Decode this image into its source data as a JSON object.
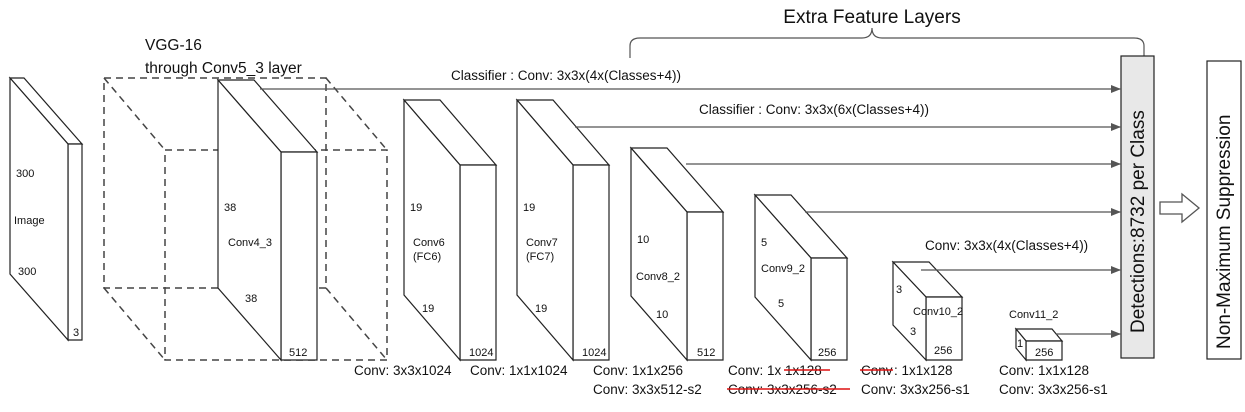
{
  "header": {
    "extra_feature_layers": "Extra Feature Layers",
    "vgg_title_line1": "VGG-16",
    "vgg_title_line2": "through Conv5_3 layer"
  },
  "input": {
    "label": "Image",
    "height_label": "300",
    "width_label": "300",
    "depth_label": "3"
  },
  "layers": {
    "conv4_3": {
      "name": "Conv4_3",
      "h": "38",
      "w": "38",
      "d": "512"
    },
    "conv6": {
      "name": "Conv6",
      "sub": "(FC6)",
      "h": "19",
      "w": "19",
      "d": "1024"
    },
    "conv7": {
      "name": "Conv7",
      "sub": "(FC7)",
      "h": "19",
      "w": "19",
      "d": "1024"
    },
    "conv8_2": {
      "name": "Conv8_2",
      "h": "10",
      "w": "10",
      "d": "512"
    },
    "conv9_2": {
      "name": "Conv9_2",
      "h": "5",
      "w": "5",
      "d": "256"
    },
    "conv10_2": {
      "name": "Conv10_2",
      "h": "3",
      "w": "3",
      "d": "256"
    },
    "conv11_2": {
      "name": "Conv11_2",
      "h": "1",
      "d": "256"
    }
  },
  "classifiers": {
    "c1": "Classifier : Conv: 3x3x(4x(Classes+4))",
    "c2": "Classifier : Conv: 3x3x(6x(Classes+4))",
    "c3": "Conv: 3x3x(4x(Classes+4))"
  },
  "bottom_labels": {
    "conv6_op": "Conv: 3x3x1024",
    "conv7_op": "Conv: 1x1x1024",
    "conv8_op1": "Conv: 1x1x256",
    "conv8_op2": "Conv:  3x3x512-s2",
    "conv9_op1_prefix": "Conv: 1x",
    "conv9_op1_struck": "1x128",
    "conv9_op2_struck": "Conv: 3x3x256-s2",
    "conv10_op1_struck": "Conv",
    "conv10_op1_rest": ": 1x1x128",
    "conv10_op2": "Conv: 3x3x256-s1",
    "conv11_op1": "Conv: 1x1x128",
    "conv11_op2": "Conv: 3x3x256-s1"
  },
  "detections_label": "Detections:8732  per Class",
  "nms_label": "Non-Maximum Suppression",
  "colors": {
    "line": "#222222",
    "arrow": "#555555",
    "strike": "#dd1111",
    "panel": "#e8e8e8"
  }
}
